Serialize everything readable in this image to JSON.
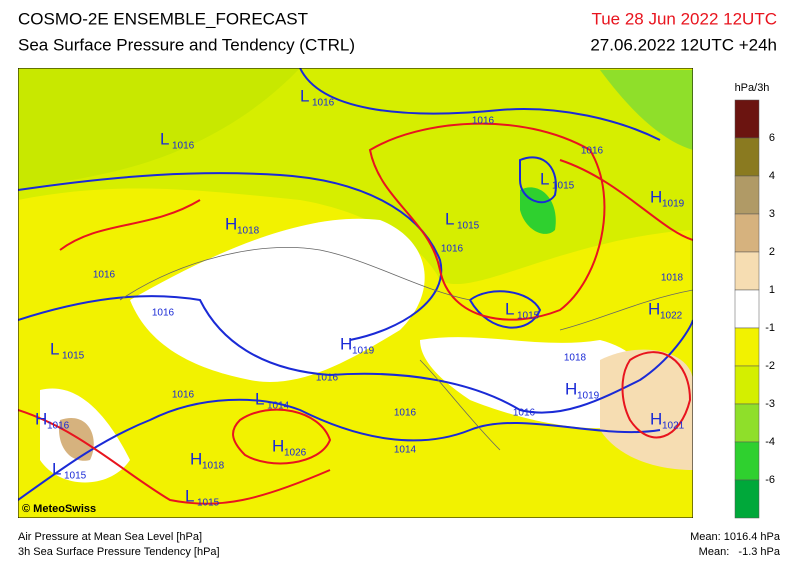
{
  "header": {
    "title": "COSMO-2E ENSEMBLE_FORECAST",
    "subtitle": "Sea Surface Pressure and Tendency (CTRL)",
    "valid_time": "Tue 28 Jun 2022 12UTC",
    "run_time": "27.06.2022 12UTC +24h"
  },
  "map": {
    "centers": [
      {
        "type": "L",
        "value": "1016"
      },
      {
        "type": "L",
        "value": "1016"
      },
      {
        "type": "L",
        "value": "1015"
      },
      {
        "type": "H",
        "value": "1019"
      },
      {
        "type": "H",
        "value": "1018"
      },
      {
        "type": "L",
        "value": "1015"
      },
      {
        "type": "L",
        "value": "1015"
      },
      {
        "type": "H",
        "value": "1022"
      },
      {
        "type": "L",
        "value": "1015"
      },
      {
        "type": "H",
        "value": "1019"
      },
      {
        "type": "H",
        "value": "1019"
      },
      {
        "type": "L",
        "value": "1014"
      },
      {
        "type": "H",
        "value": "1016"
      },
      {
        "type": "H",
        "value": "1021"
      },
      {
        "type": "H",
        "value": "1026"
      },
      {
        "type": "H",
        "value": "1018"
      },
      {
        "type": "L",
        "value": "1015"
      },
      {
        "type": "L",
        "value": "1015"
      }
    ],
    "isobar_labels": [
      "1016",
      "1016",
      "1016",
      "1016",
      "1016",
      "1018",
      "1018",
      "1016",
      "1016",
      "1016",
      "1016",
      "1014"
    ],
    "copyright": "© MeteoSwiss"
  },
  "colorbar": {
    "unit": "hPa/3h",
    "labels": [
      "6",
      "4",
      "3",
      "2",
      "1",
      "-1",
      "-2",
      "-3",
      "-4",
      "-6"
    ],
    "colors": [
      "#6b1410",
      "#8a7a20",
      "#b09a66",
      "#d6b27e",
      "#f6ddb2",
      "#ffffff",
      "#f2f200",
      "#d4ef00",
      "#8fdf2a",
      "#2fd02f",
      "#00a83a"
    ]
  },
  "footer": {
    "left": [
      "Air Pressure at Mean Sea Level [hPa]",
      "3h Sea Surface Pressure Tendency [hPa]"
    ],
    "right": [
      "Mean: 1016.4 hPa",
      "Mean:   -1.3 hPa"
    ]
  }
}
